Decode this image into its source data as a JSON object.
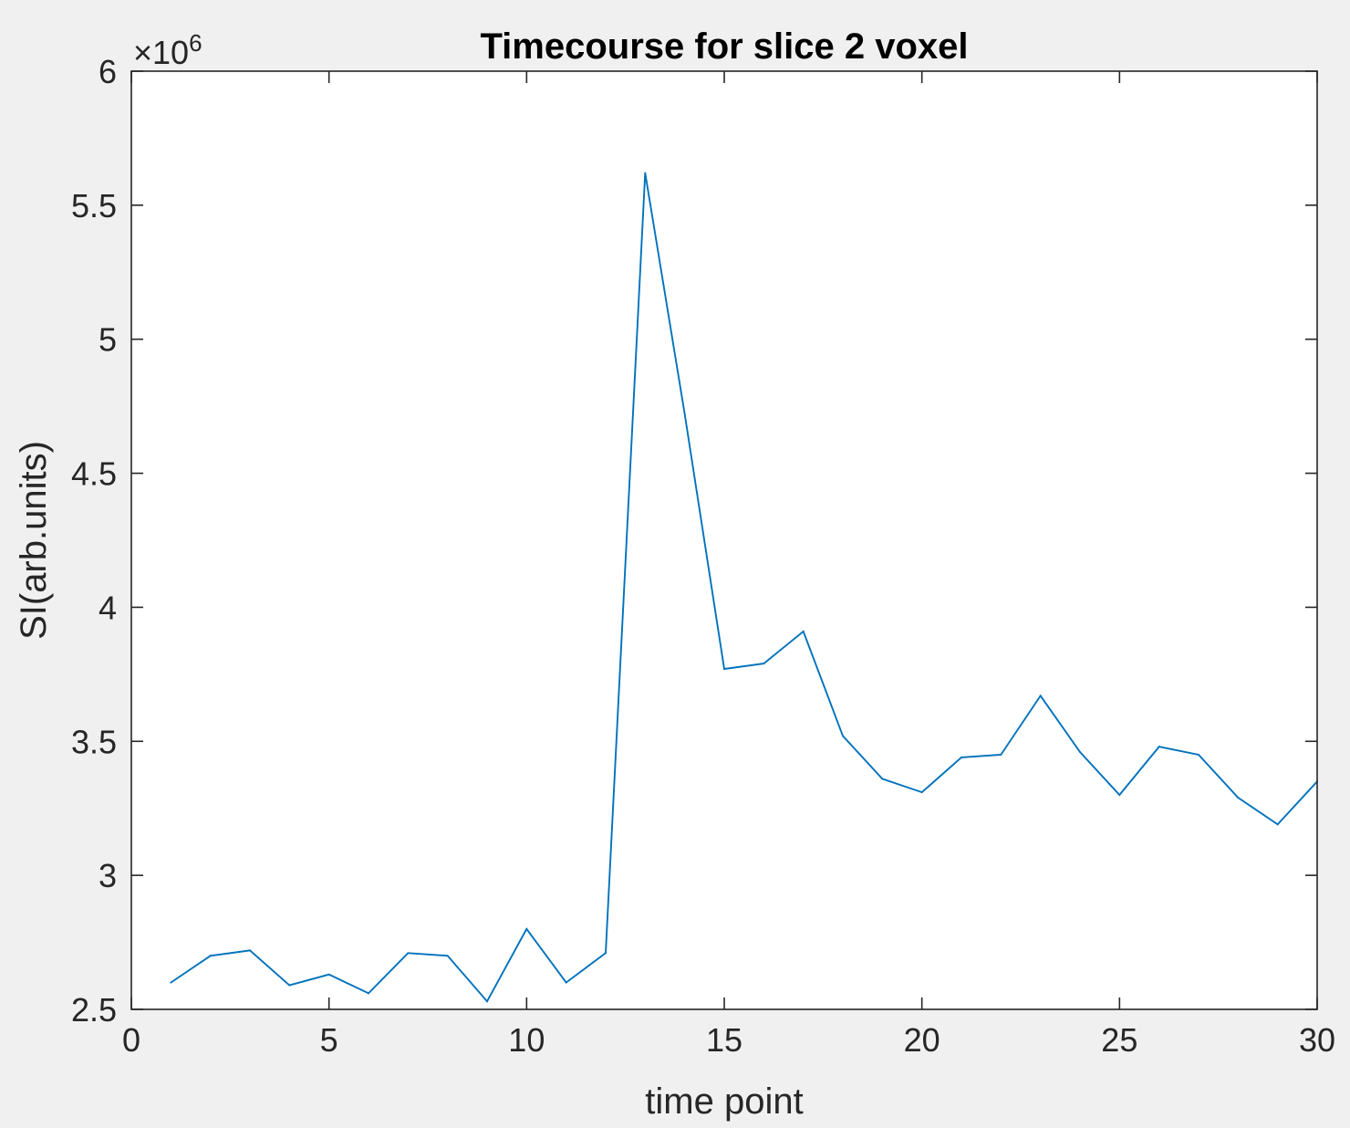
{
  "chart_data": {
    "type": "line",
    "title": "Timecourse for slice 2 voxel",
    "xlabel": "time point",
    "ylabel": "SI(arb.units)",
    "y_multiplier": {
      "base": "×10",
      "exponent": "6"
    },
    "xlim": [
      0,
      30
    ],
    "ylim": [
      2.5,
      6
    ],
    "x_ticks": [
      0,
      5,
      10,
      15,
      20,
      25,
      30
    ],
    "x_tick_labels": [
      "0",
      "5",
      "10",
      "15",
      "20",
      "25",
      "30"
    ],
    "y_ticks": [
      2.5,
      3,
      3.5,
      4,
      4.5,
      5,
      5.5,
      6
    ],
    "y_tick_labels": [
      "2.5",
      "3",
      "3.5",
      "4",
      "4.5",
      "5",
      "5.5",
      "6"
    ],
    "grid": false,
    "colors": {
      "line": "#0072bd",
      "axes": "#262626",
      "background": "#ffffff",
      "figure": "#f0f0f0"
    },
    "series": [
      {
        "x": [
          1,
          2,
          3,
          4,
          5,
          6,
          7,
          8,
          9,
          10,
          11,
          12,
          13,
          14,
          15,
          16,
          17,
          18,
          19,
          20,
          21,
          22,
          23,
          24,
          25,
          26,
          27,
          28,
          29,
          30
        ],
        "y": [
          2.6,
          2.7,
          2.72,
          2.59,
          2.63,
          2.56,
          2.71,
          2.7,
          2.53,
          2.8,
          2.6,
          2.71,
          5.62,
          4.72,
          3.77,
          3.79,
          3.91,
          3.52,
          3.36,
          3.31,
          3.44,
          3.45,
          3.67,
          3.46,
          3.3,
          3.48,
          3.45,
          3.29,
          3.19,
          3.35
        ]
      }
    ]
  }
}
